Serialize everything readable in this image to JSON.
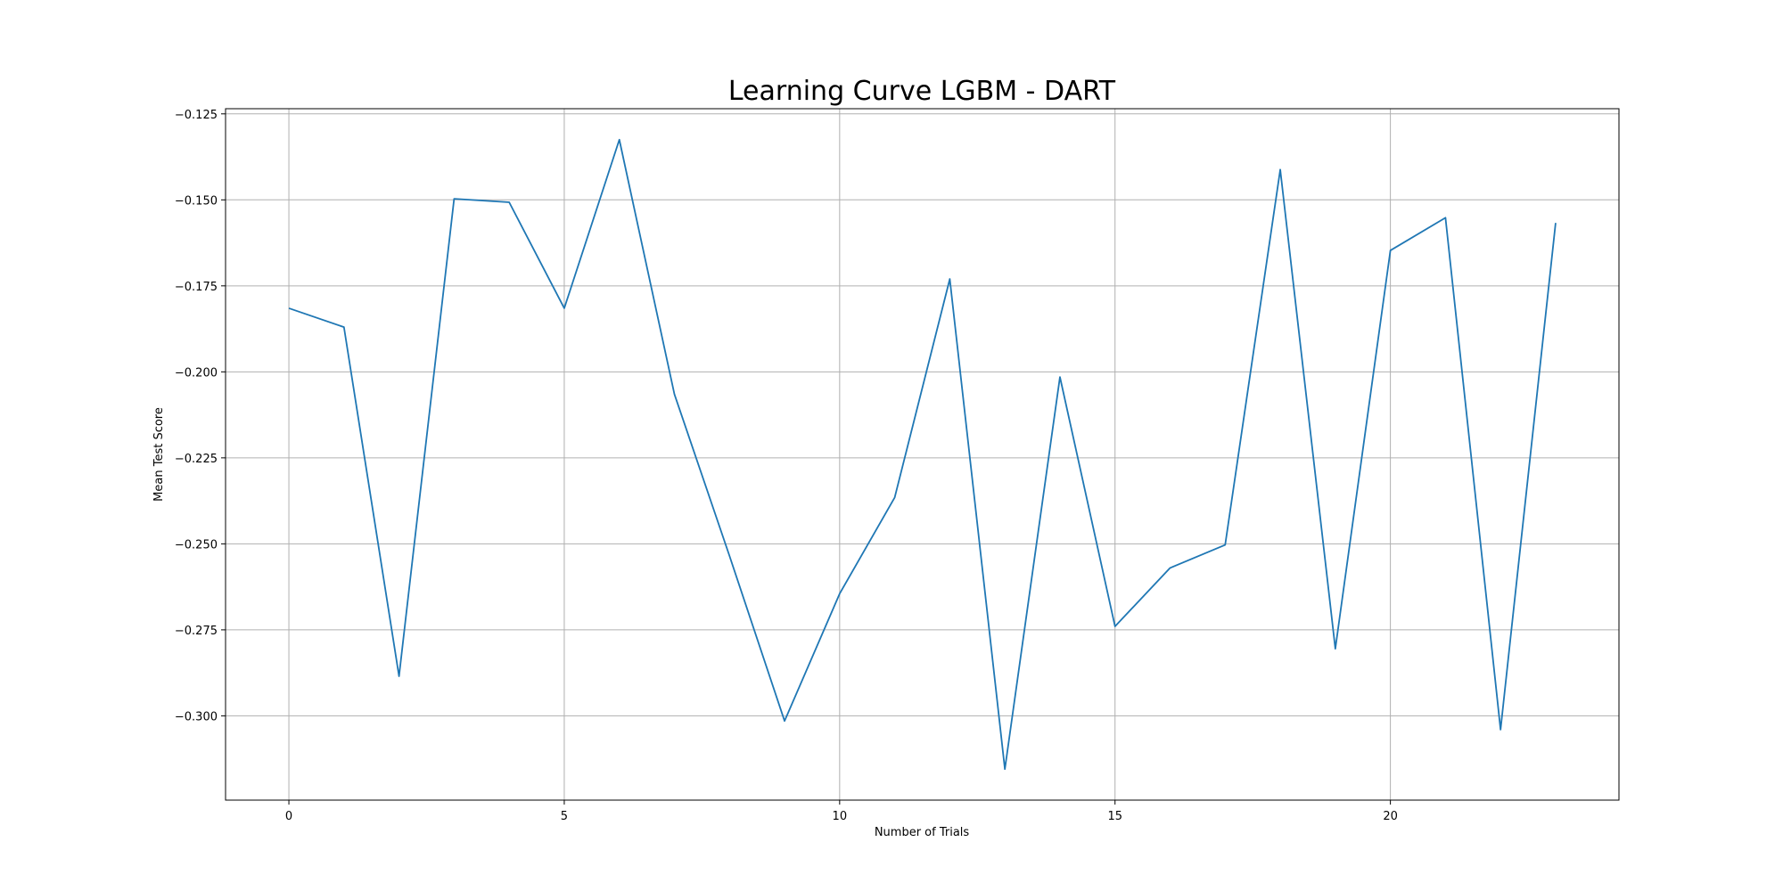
{
  "chart_data": {
    "type": "line",
    "title": "Learning Curve LGBM - DART",
    "xlabel": "Number of Trials",
    "ylabel": "Mean Test Score",
    "xlim": [
      -1.15,
      24.15
    ],
    "ylim": [
      -0.3245,
      -0.1235
    ],
    "xticks": [
      0,
      5,
      10,
      15,
      20
    ],
    "yticks": [
      -0.125,
      -0.15,
      -0.175,
      -0.2,
      -0.225,
      -0.25,
      -0.275,
      -0.3
    ],
    "ytick_labels": [
      "−0.125",
      "−0.150",
      "−0.175",
      "−0.200",
      "−0.225",
      "−0.250",
      "−0.275",
      "−0.300"
    ],
    "grid": true,
    "color": "#1f77b4",
    "series": [
      {
        "x": [
          0,
          1,
          2,
          3,
          4,
          5,
          6,
          7,
          8,
          9,
          10,
          11,
          12,
          13,
          14,
          15,
          16,
          17,
          18,
          19,
          20,
          21,
          22,
          23
        ],
        "values": [
          -0.1815,
          -0.187,
          -0.2885,
          -0.1497,
          -0.1507,
          -0.1815,
          -0.1325,
          -0.2065,
          -0.2535,
          -0.3015,
          -0.2645,
          -0.2365,
          -0.173,
          -0.3155,
          -0.2015,
          -0.274,
          -0.257,
          -0.2503,
          -0.1412,
          -0.2805,
          -0.1647,
          -0.1552,
          -0.304,
          -0.1567
        ]
      }
    ]
  }
}
